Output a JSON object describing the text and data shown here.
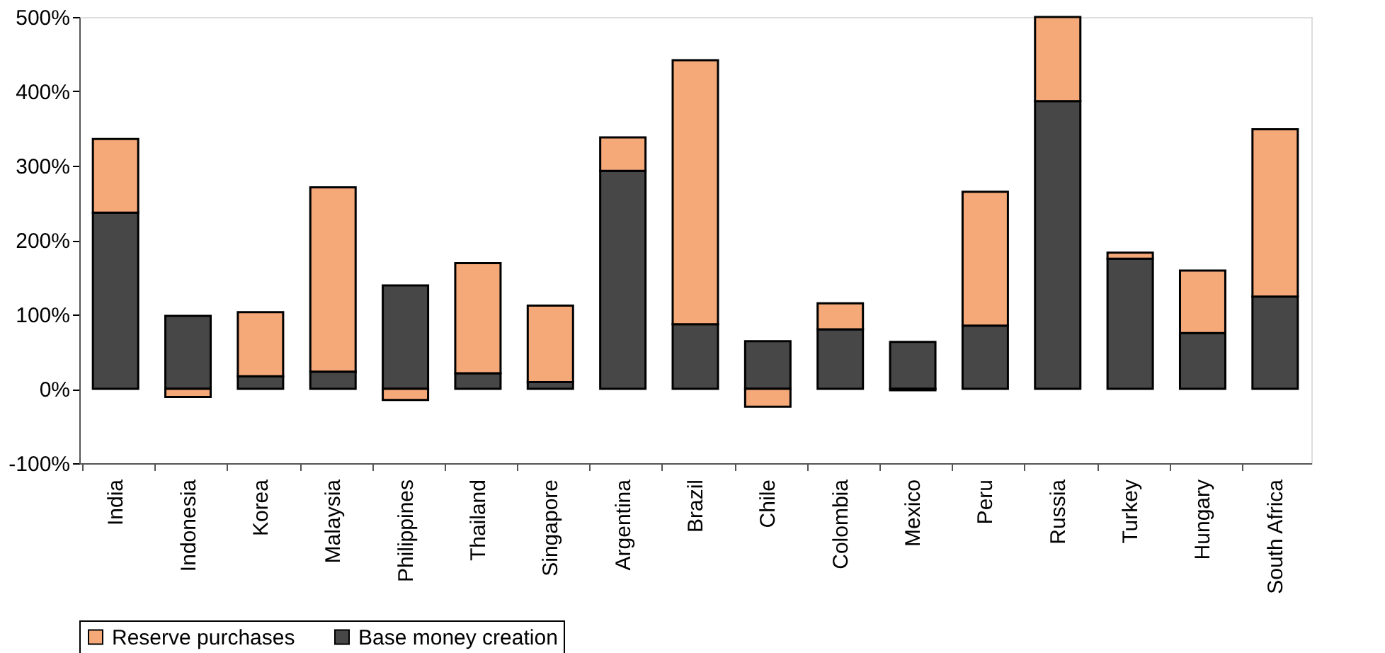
{
  "chart_data": {
    "type": "bar",
    "stacked": true,
    "categories": [
      "India",
      "Indonesia",
      "Korea",
      "Malaysia",
      "Philippines",
      "Thailand",
      "Singapore",
      "Argentina",
      "Brazil",
      "Chile",
      "Colombia",
      "Mexico",
      "Peru",
      "Russia",
      "Turkey",
      "Hungary",
      "South Africa"
    ],
    "series": [
      {
        "name": "Base money creation",
        "color": "#474747",
        "values": [
          237,
          98,
          17,
          23,
          139,
          21,
          9,
          293,
          87,
          64,
          80,
          63,
          85,
          387,
          175,
          75,
          124
        ]
      },
      {
        "name": "Reserve purchases",
        "color": "#f5a878",
        "values": [
          99,
          -11,
          86,
          248,
          -15,
          148,
          103,
          45,
          355,
          -24,
          35,
          -2,
          180,
          113,
          8,
          84,
          225
        ]
      }
    ],
    "ylim": [
      -100,
      500
    ],
    "yticks": [
      {
        "value": -100,
        "label": "-100%"
      },
      {
        "value": 0,
        "label": "0%"
      },
      {
        "value": 100,
        "label": "100%"
      },
      {
        "value": 200,
        "label": "200%"
      },
      {
        "value": 300,
        "label": "300%"
      },
      {
        "value": 400,
        "label": "400%"
      },
      {
        "value": 500,
        "label": "500%"
      }
    ],
    "grid": false,
    "legend": "bottom"
  }
}
